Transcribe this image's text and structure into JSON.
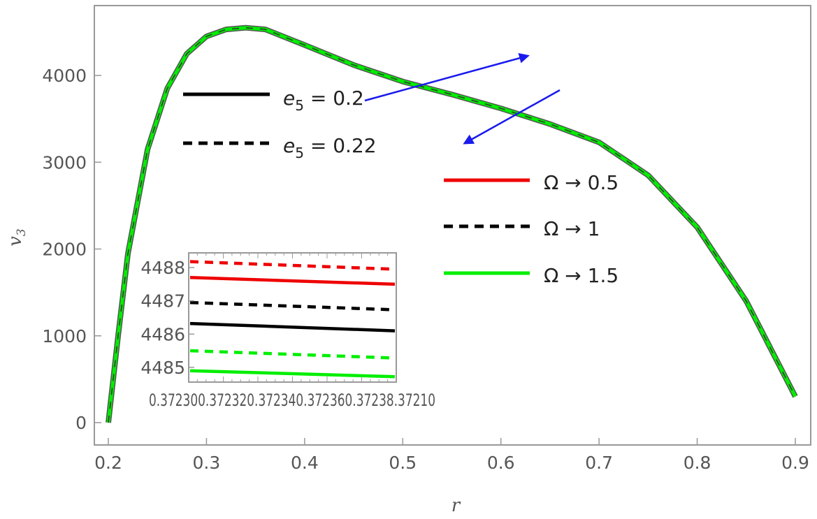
{
  "chart_data": {
    "type": "line",
    "xlabel": "r",
    "ylabel": "v",
    "ylabel_sub": "3",
    "xlim": [
      0.2,
      0.9
    ],
    "ylim": [
      0,
      4500
    ],
    "x_ticks": [
      "0.2",
      "0.3",
      "0.4",
      "0.5",
      "0.6",
      "0.7",
      "0.8",
      "0.9"
    ],
    "y_ticks": [
      "0",
      "1000",
      "2000",
      "3000",
      "4000"
    ],
    "grid": false,
    "series": [
      {
        "name": "Ω → 1.5",
        "color": "#00ee00",
        "x": [
          0.2,
          0.21,
          0.22,
          0.24,
          0.26,
          0.28,
          0.3,
          0.32,
          0.34,
          0.36,
          0.4,
          0.45,
          0.5,
          0.55,
          0.6,
          0.65,
          0.7,
          0.75,
          0.8,
          0.85,
          0.9
        ],
        "y": [
          0,
          1000,
          1950,
          3150,
          3850,
          4250,
          4450,
          4530,
          4550,
          4530,
          4350,
          4120,
          3930,
          3780,
          3620,
          3440,
          3230,
          2850,
          2250,
          1400,
          300
        ]
      }
    ],
    "legend_groups": [
      {
        "placement": "upper-left",
        "entries": [
          {
            "label_var": "e",
            "label_sub": "5",
            "label_rest": " = 0.2",
            "style": "solid",
            "color": "#000000"
          },
          {
            "label_var": "e",
            "label_sub": "5",
            "label_rest": " = 0.22",
            "style": "dashed",
            "color": "#000000"
          }
        ]
      },
      {
        "placement": "right",
        "entries": [
          {
            "label": "Ω → 0.5",
            "style": "solid",
            "color": "#ee0000"
          },
          {
            "label": "Ω → 1",
            "style": "dashed",
            "color": "#000000"
          },
          {
            "label": "Ω → 1.5",
            "style": "solid",
            "color": "#00ee00"
          }
        ]
      }
    ],
    "annotations": [
      {
        "type": "arrow",
        "color": "#1a1aee",
        "direction": "up-right"
      },
      {
        "type": "arrow",
        "color": "#1a1aee",
        "direction": "down-left"
      }
    ],
    "inset": {
      "type": "line",
      "x_tick_label": "0.372300.37232.0.372340.37236.0.37238.0.37210",
      "x_tick_text": "0.372300.372320.372340.372360.37238.37210",
      "y_ticks": [
        "4485",
        "4486",
        "4487",
        "4488"
      ],
      "ylim": [
        4484.6,
        4488.4
      ],
      "series": [
        {
          "name": "Ω → 0.5, e5 = 0.22",
          "color": "#ee0000",
          "style": "dashed",
          "y": [
            4488.18,
            4487.95
          ]
        },
        {
          "name": "Ω → 0.5, e5 = 0.2",
          "color": "#ee0000",
          "style": "solid",
          "y": [
            4487.7,
            4487.5
          ]
        },
        {
          "name": "Ω → 1, e5 = 0.22",
          "color": "#000000",
          "style": "dashed",
          "y": [
            4486.95,
            4486.73
          ]
        },
        {
          "name": "Ω → 1, e5 = 0.2",
          "color": "#000000",
          "style": "solid",
          "y": [
            4486.32,
            4486.1
          ]
        },
        {
          "name": "Ω → 1.5, e5 = 0.22",
          "color": "#00ee00",
          "style": "dashed",
          "y": [
            4485.5,
            4485.28
          ]
        },
        {
          "name": "Ω → 1.5, e5 = 0.2",
          "color": "#00ee00",
          "style": "solid",
          "y": [
            4484.9,
            4484.72
          ]
        }
      ]
    }
  }
}
